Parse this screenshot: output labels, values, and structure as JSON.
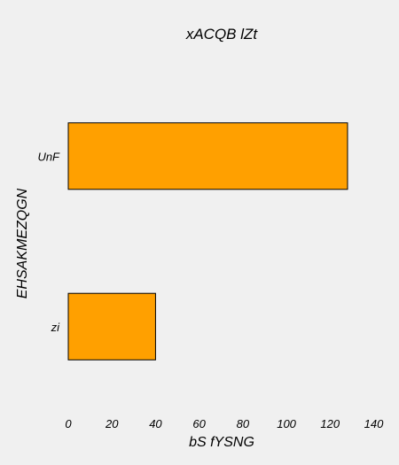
{
  "chart_data": {
    "type": "bar",
    "orientation": "horizontal",
    "title": "xACQB  lZt",
    "xlabel": "bS fYSNG",
    "ylabel": "EHSAKMEZQGN",
    "categories": [
      "UnF",
      "zi"
    ],
    "values": [
      128,
      40
    ],
    "xlim": [
      0,
      140
    ],
    "xticks": [
      0,
      20,
      40,
      60,
      80,
      100,
      120,
      140
    ],
    "grid": false,
    "bar_color": "#ffa000",
    "background_color": "#f0f0f0"
  }
}
